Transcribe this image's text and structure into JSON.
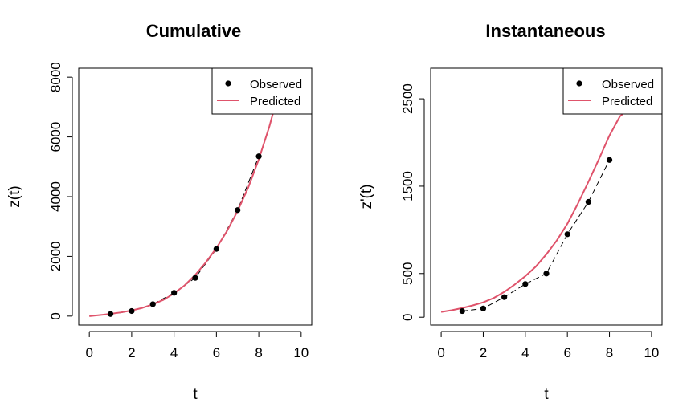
{
  "chart_data": [
    {
      "type": "line",
      "title": "Cumulative",
      "xlabel": "t",
      "ylabel": "z(t)",
      "xlim": [
        -0.5,
        10.5
      ],
      "ylim": [
        -300,
        8300
      ],
      "xticks": [
        0,
        2,
        4,
        6,
        8,
        10
      ],
      "yticks": [
        0,
        2000,
        4000,
        6000,
        8000
      ],
      "legend": {
        "position": "top-right",
        "entries": [
          "Observed",
          "Predicted"
        ]
      },
      "grid": false,
      "series": [
        {
          "name": "Observed",
          "kind": "points-connected",
          "color": "#000000",
          "x": [
            1,
            2,
            3,
            4,
            5,
            6,
            7,
            8
          ],
          "y": [
            70,
            170,
            400,
            780,
            1280,
            2250,
            3550,
            5350
          ]
        },
        {
          "name": "Predicted",
          "kind": "line",
          "color": "#df536b",
          "x": [
            0,
            0.5,
            1,
            1.5,
            2,
            2.5,
            3,
            3.5,
            4,
            4.5,
            5,
            5.5,
            6,
            6.5,
            7,
            7.5,
            8,
            8.5,
            9,
            9.3
          ],
          "y": [
            0,
            35,
            75,
            125,
            190,
            275,
            395,
            545,
            760,
            1030,
            1380,
            1800,
            2280,
            2850,
            3520,
            4300,
            5250,
            6350,
            7650,
            8400
          ]
        }
      ]
    },
    {
      "type": "line",
      "title": "Instantaneous",
      "xlabel": "t",
      "ylabel": "z'(t)",
      "xlim": [
        -0.5,
        10.5
      ],
      "ylim": [
        -90,
        2850
      ],
      "xticks": [
        0,
        2,
        4,
        6,
        8,
        10
      ],
      "yticks": [
        0,
        500,
        1500,
        2500
      ],
      "legend": {
        "position": "top-right",
        "entries": [
          "Observed",
          "Predicted"
        ]
      },
      "grid": false,
      "series": [
        {
          "name": "Observed",
          "kind": "points-connected",
          "color": "#000000",
          "x": [
            1,
            2,
            3,
            4,
            5,
            6,
            7,
            8
          ],
          "y": [
            70,
            100,
            230,
            380,
            500,
            950,
            1320,
            1800
          ]
        },
        {
          "name": "Predicted",
          "kind": "line",
          "color": "#df536b",
          "x": [
            0,
            0.5,
            1,
            1.5,
            2,
            2.5,
            3,
            3.5,
            4,
            4.5,
            5,
            5.5,
            6,
            6.5,
            7,
            7.5,
            8,
            8.5,
            9,
            9.5,
            10
          ],
          "y": [
            60,
            80,
            105,
            135,
            170,
            220,
            290,
            375,
            470,
            580,
            720,
            880,
            1070,
            1300,
            1550,
            1810,
            2080,
            2300,
            2400,
            2440,
            2440
          ]
        }
      ]
    }
  ],
  "colors": {
    "observed": "#000000",
    "predicted": "#df536b",
    "axis": "#000000"
  }
}
